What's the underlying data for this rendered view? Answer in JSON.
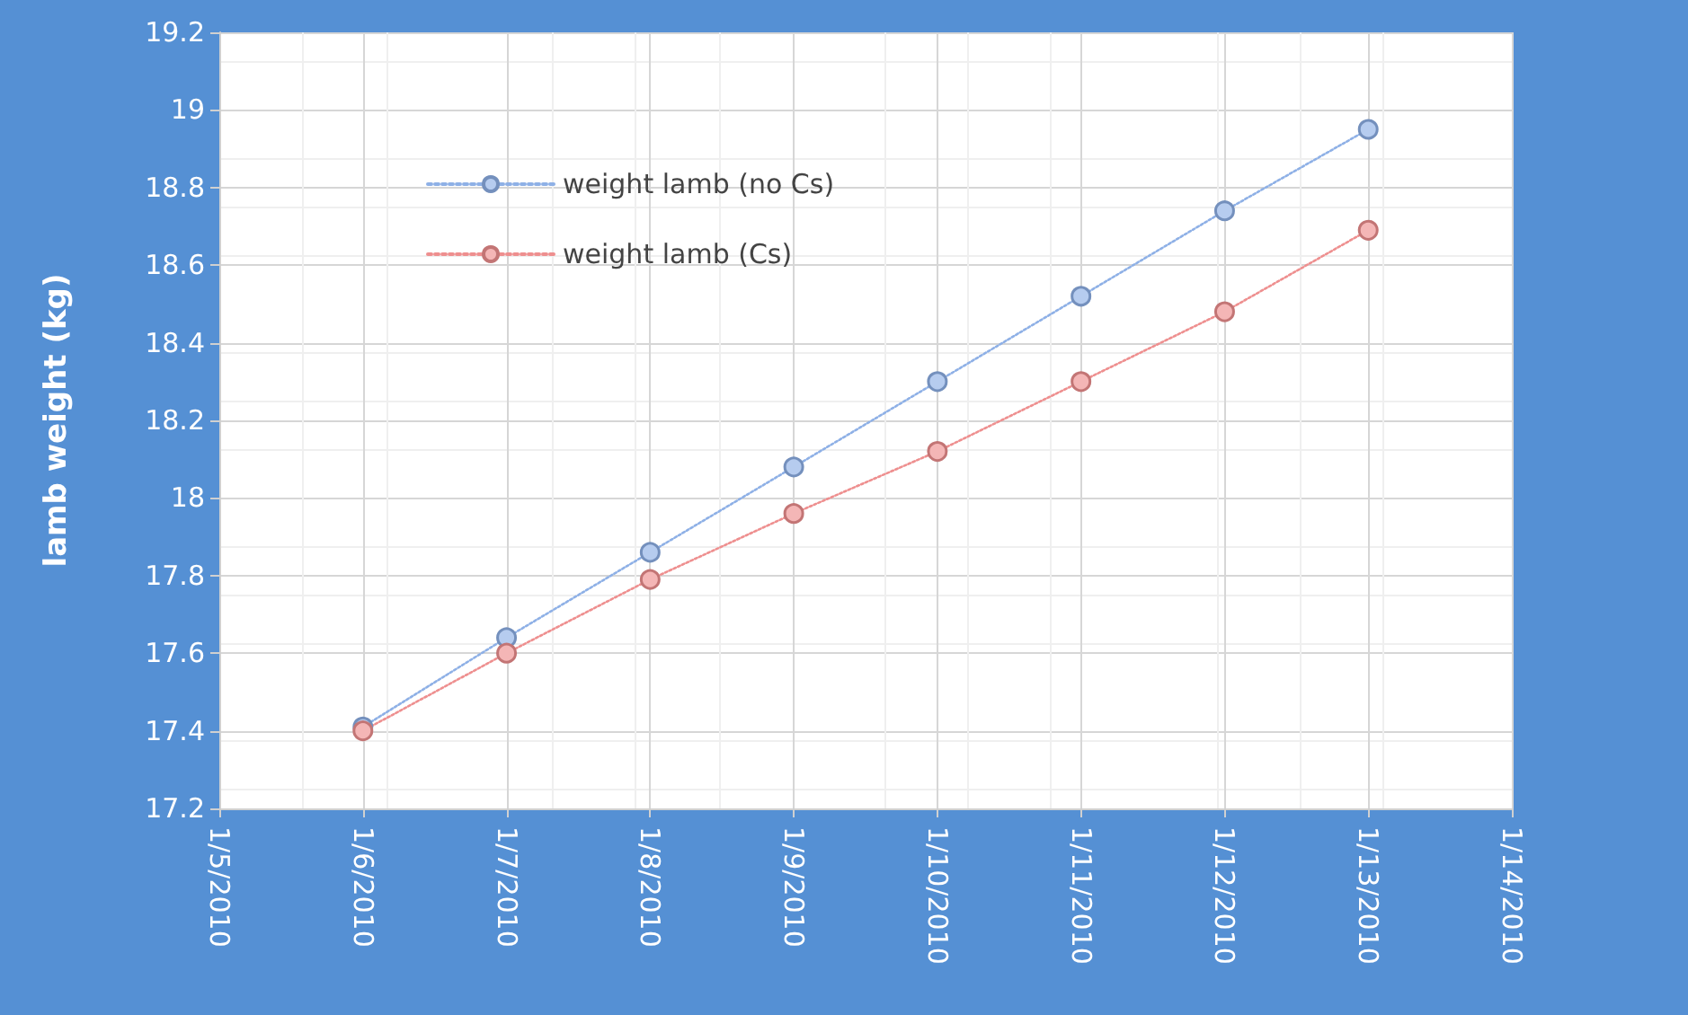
{
  "chart_data": {
    "type": "line",
    "ylabel": "lamb weight (kg)",
    "x": [
      "2010-01-06",
      "2010-01-07",
      "2010-01-08",
      "2010-01-09",
      "2010-01-10",
      "2010-01-11",
      "2010-01-12",
      "2010-01-13"
    ],
    "series": [
      {
        "name": "weight lamb (no Cs)",
        "color": "#8eb0e6",
        "values": [
          17.41,
          17.64,
          17.86,
          18.08,
          18.3,
          18.52,
          18.74,
          18.95
        ]
      },
      {
        "name": "weight lamb (Cs)",
        "color": "#ee8f8f",
        "values": [
          17.4,
          17.6,
          17.79,
          17.96,
          18.12,
          18.3,
          18.48,
          18.69
        ]
      }
    ],
    "xlim": [
      "2010-01-05",
      "2010-01-14"
    ],
    "xticks": [
      {
        "value": "2010-01-05",
        "label": "1/5/2010"
      },
      {
        "value": "2010-01-06",
        "label": "1/6/2010"
      },
      {
        "value": "2010-01-07",
        "label": "1/7/2010"
      },
      {
        "value": "2010-01-08",
        "label": "1/8/2010"
      },
      {
        "value": "2010-01-09",
        "label": "1/9/2010"
      },
      {
        "value": "2010-01-10",
        "label": "1/10/2010"
      },
      {
        "value": "2010-01-11",
        "label": "1/11/2010"
      },
      {
        "value": "2010-01-12",
        "label": "1/12/2010"
      },
      {
        "value": "2010-01-13",
        "label": "1/13/2010"
      },
      {
        "value": "2010-01-14",
        "label": "1/14/2010"
      }
    ],
    "ylim": [
      17.2,
      19.2
    ],
    "yticks": [
      17.2,
      17.4,
      17.6,
      17.8,
      18,
      18.2,
      18.4,
      18.6,
      18.8,
      19,
      19.2
    ],
    "grid": true,
    "legend": "top left",
    "marker": "circle",
    "line_style": "dotted"
  }
}
